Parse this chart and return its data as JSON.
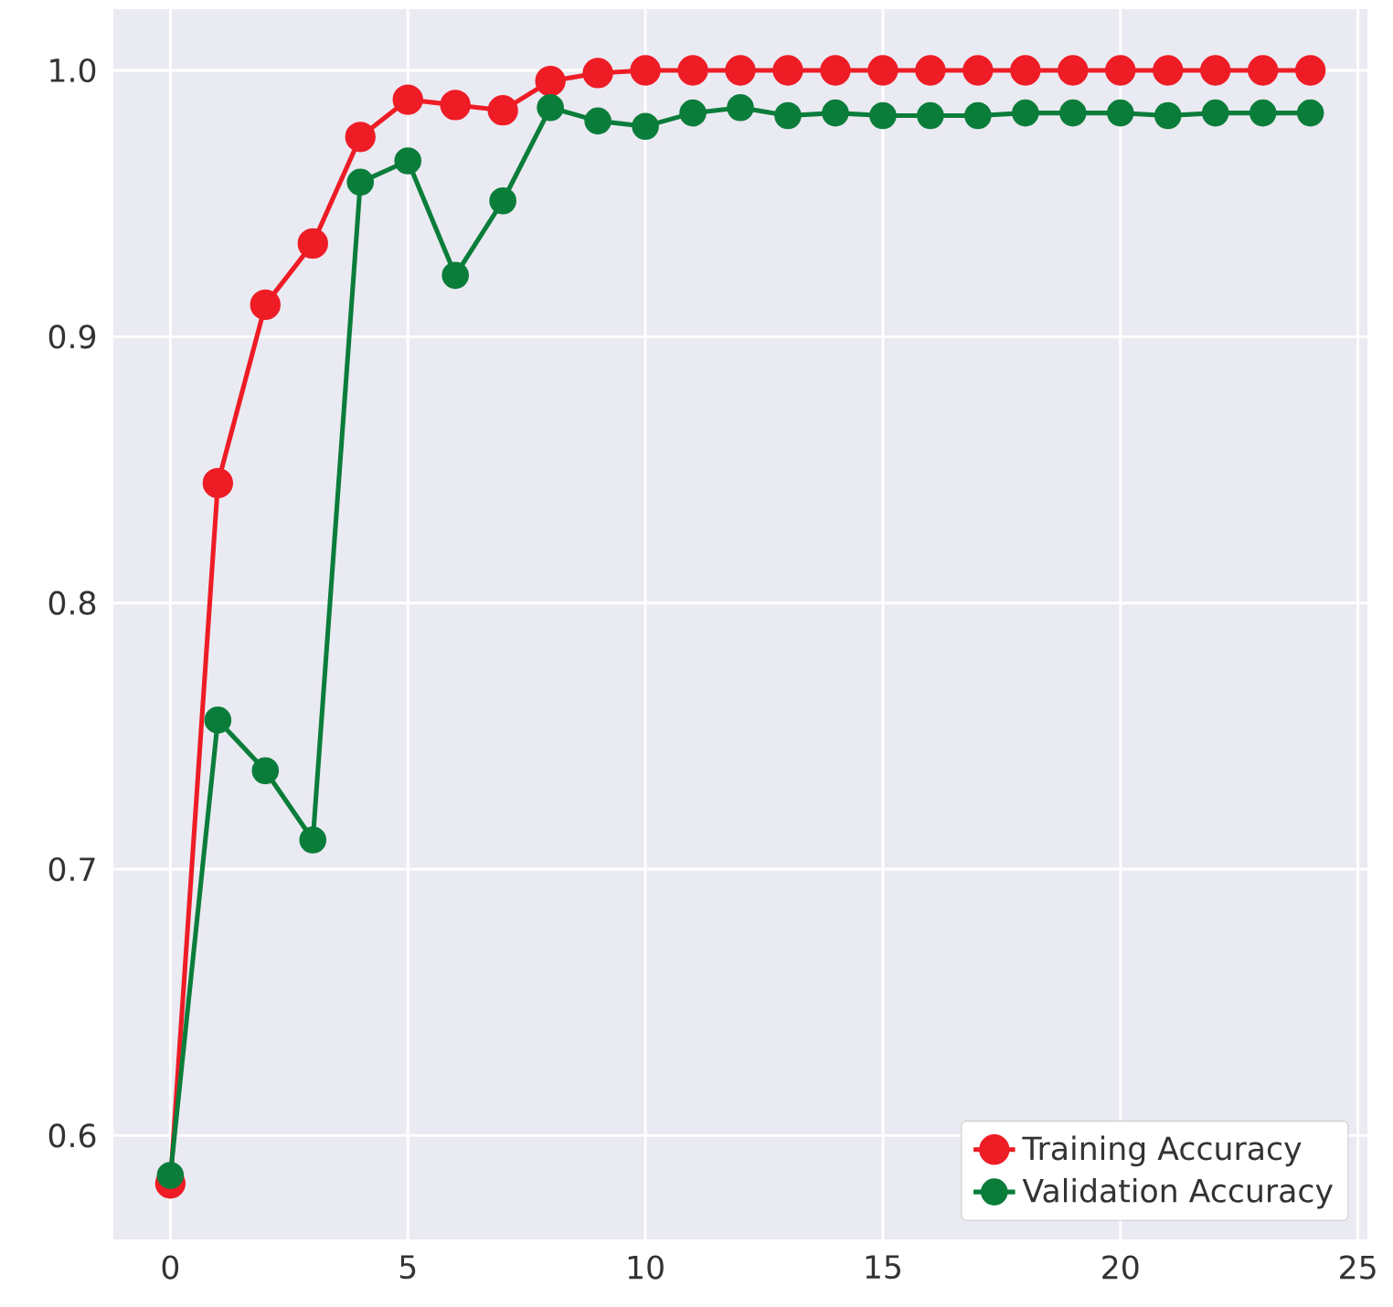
{
  "chart_data": {
    "type": "line",
    "x": [
      0,
      1,
      2,
      3,
      4,
      5,
      6,
      7,
      8,
      9,
      10,
      11,
      12,
      13,
      14,
      15,
      16,
      17,
      18,
      19,
      20,
      21,
      22,
      23,
      24
    ],
    "series": [
      {
        "name": "Training Accuracy",
        "color": "#ee1c25",
        "values": [
          0.582,
          0.845,
          0.912,
          0.935,
          0.975,
          0.989,
          0.987,
          0.985,
          0.996,
          0.999,
          1.0,
          1.0,
          1.0,
          1.0,
          1.0,
          1.0,
          1.0,
          1.0,
          1.0,
          1.0,
          1.0,
          1.0,
          1.0,
          1.0,
          1.0
        ]
      },
      {
        "name": "Validation Accuracy",
        "color": "#0b7d3a",
        "values": [
          0.585,
          0.756,
          0.737,
          0.711,
          0.958,
          0.966,
          0.923,
          0.951,
          0.986,
          0.981,
          0.979,
          0.984,
          0.986,
          0.983,
          0.984,
          0.983,
          0.983,
          0.983,
          0.984,
          0.984,
          0.984,
          0.983,
          0.984,
          0.984,
          0.984
        ]
      }
    ],
    "xlim": [
      -1.2,
      25.2
    ],
    "ylim": [
      0.561,
      1.023
    ],
    "xticks": [
      0,
      5,
      10,
      15,
      20,
      25
    ],
    "yticks": [
      0.6,
      0.7,
      0.8,
      0.9,
      {
        "value": 1.0,
        "label": "1.0"
      }
    ],
    "grid": true,
    "legend": "bottom right",
    "marker": "circle",
    "line_style": "solid"
  }
}
